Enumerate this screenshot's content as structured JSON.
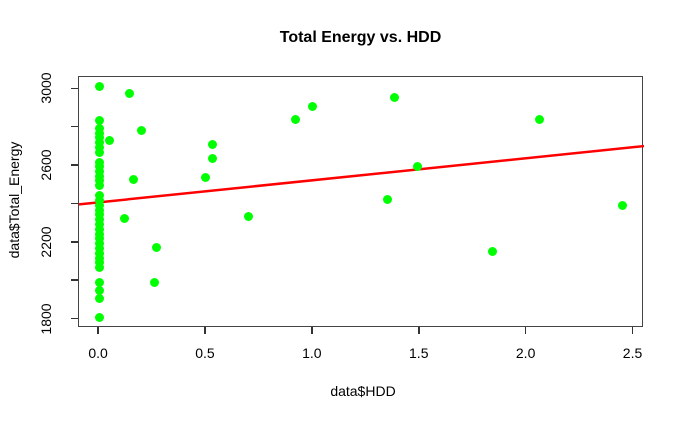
{
  "colors": {
    "point_fill": "#00ff00",
    "regression_line": "#ff0000",
    "axis": "#333333",
    "text": "#000000",
    "background": "#ffffff"
  },
  "chart_data": {
    "type": "scatter",
    "title": "Total Energy vs. HDD",
    "xlabel": "data$HDD",
    "ylabel": "data$Total_Energy",
    "xlim": [
      -0.094,
      2.549
    ],
    "ylim": [
      1756,
      3064
    ],
    "grid": false,
    "legend": null,
    "x_ticks": [
      0.0,
      0.5,
      1.0,
      1.5,
      2.0,
      2.5
    ],
    "x_tick_labels": [
      "0.0",
      "0.5",
      "1.0",
      "1.5",
      "2.0",
      "2.5"
    ],
    "y_ticks": [
      1800,
      2000,
      2200,
      2400,
      2600,
      2800,
      3000
    ],
    "y_tick_labels": [
      "1800",
      "",
      "2200",
      "",
      "2600",
      "",
      "3000"
    ],
    "points": [
      [
        0.0,
        3015
      ],
      [
        0.0,
        2835
      ],
      [
        0.0,
        2795
      ],
      [
        0.0,
        2770
      ],
      [
        0.0,
        2748
      ],
      [
        0.0,
        2722
      ],
      [
        0.0,
        2698
      ],
      [
        0.0,
        2672
      ],
      [
        0.0,
        2620
      ],
      [
        0.0,
        2596
      ],
      [
        0.0,
        2572
      ],
      [
        0.0,
        2548
      ],
      [
        0.0,
        2524
      ],
      [
        0.0,
        2500
      ],
      [
        0.0,
        2445
      ],
      [
        0.0,
        2420
      ],
      [
        0.0,
        2395
      ],
      [
        0.0,
        2370
      ],
      [
        0.0,
        2345
      ],
      [
        0.0,
        2320
      ],
      [
        0.0,
        2295
      ],
      [
        0.0,
        2270
      ],
      [
        0.0,
        2245
      ],
      [
        0.0,
        2220
      ],
      [
        0.0,
        2195
      ],
      [
        0.0,
        2170
      ],
      [
        0.0,
        2145
      ],
      [
        0.0,
        2120
      ],
      [
        0.0,
        2095
      ],
      [
        0.0,
        2070
      ],
      [
        0.0,
        1995
      ],
      [
        0.0,
        1950
      ],
      [
        0.0,
        1910
      ],
      [
        0.0,
        1810
      ],
      [
        0.05,
        2735
      ],
      [
        0.12,
        2325
      ],
      [
        0.14,
        2980
      ],
      [
        0.16,
        2530
      ],
      [
        0.2,
        2785
      ],
      [
        0.26,
        1995
      ],
      [
        0.27,
        2175
      ],
      [
        0.5,
        2540
      ],
      [
        0.53,
        2710
      ],
      [
        0.53,
        2640
      ],
      [
        0.7,
        2335
      ],
      [
        0.92,
        2840
      ],
      [
        1.0,
        2910
      ],
      [
        1.35,
        2425
      ],
      [
        1.38,
        2955
      ],
      [
        1.49,
        2595
      ],
      [
        1.84,
        2155
      ],
      [
        2.06,
        2840
      ],
      [
        2.45,
        2395
      ]
    ],
    "regression_line": {
      "intercept": 2411,
      "slope": 115,
      "x_from": -0.094,
      "x_to": 2.549
    }
  }
}
